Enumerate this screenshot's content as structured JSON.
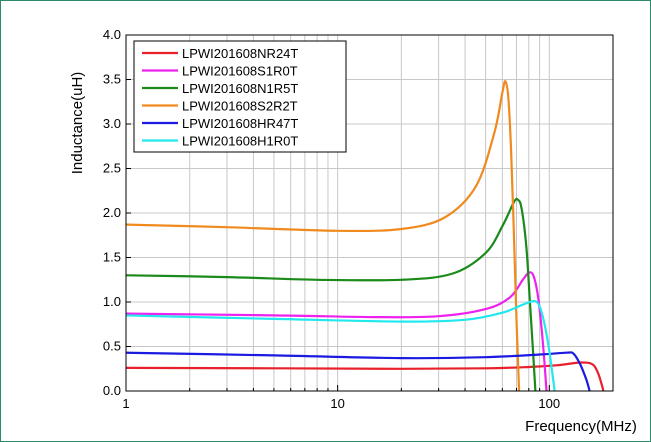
{
  "chart_data": {
    "type": "line",
    "title": "",
    "xlabel": "Frequency(MHz)",
    "ylabel": "Inductance(uH)",
    "xscale": "log",
    "xlim": [
      1,
      200
    ],
    "ylim": [
      0,
      4.0
    ],
    "xticks": [
      1,
      10,
      100
    ],
    "xtick_labels": [
      "1",
      "10",
      "100"
    ],
    "yticks": [
      0,
      0.5,
      1.0,
      1.5,
      2.0,
      2.5,
      3.0,
      3.5,
      4.0
    ],
    "ytick_labels": [
      "0.0",
      "0.5",
      "1.0",
      "1.5",
      "2.0",
      "2.5",
      "3.0",
      "3.5",
      "4.0"
    ],
    "grid": true,
    "legend_position": "top-left",
    "series": [
      {
        "name": "LPWI201608NR24T",
        "color": "#e8202a",
        "points": [
          [
            1,
            0.26
          ],
          [
            5,
            0.255
          ],
          [
            20,
            0.25
          ],
          [
            50,
            0.255
          ],
          [
            80,
            0.27
          ],
          [
            110,
            0.29
          ],
          [
            140,
            0.32
          ],
          [
            160,
            0.3
          ],
          [
            170,
            0.2
          ],
          [
            178,
            0.05
          ],
          [
            180,
            0.0
          ]
        ]
      },
      {
        "name": "LPWI201608S1R0T",
        "color": "#ee22ee",
        "points": [
          [
            1,
            0.87
          ],
          [
            5,
            0.85
          ],
          [
            15,
            0.83
          ],
          [
            30,
            0.84
          ],
          [
            50,
            0.92
          ],
          [
            65,
            1.05
          ],
          [
            75,
            1.25
          ],
          [
            80,
            1.33
          ],
          [
            84,
            1.3
          ],
          [
            88,
            1.1
          ],
          [
            92,
            0.7
          ],
          [
            95,
            0.3
          ],
          [
            97,
            0.0
          ]
        ]
      },
      {
        "name": "LPWI201608N1R5T",
        "color": "#1a8a1a",
        "points": [
          [
            1,
            1.3
          ],
          [
            3,
            1.28
          ],
          [
            8,
            1.25
          ],
          [
            20,
            1.25
          ],
          [
            35,
            1.32
          ],
          [
            50,
            1.55
          ],
          [
            60,
            1.85
          ],
          [
            68,
            2.12
          ],
          [
            71,
            2.15
          ],
          [
            74,
            2.05
          ],
          [
            78,
            1.6
          ],
          [
            81,
            1.0
          ],
          [
            84,
            0.4
          ],
          [
            86,
            0.0
          ]
        ]
      },
      {
        "name": "LPWI201608S2R2T",
        "color": "#f08a1e",
        "points": [
          [
            1,
            1.87
          ],
          [
            3,
            1.84
          ],
          [
            10,
            1.8
          ],
          [
            20,
            1.82
          ],
          [
            32,
            1.95
          ],
          [
            45,
            2.3
          ],
          [
            55,
            2.9
          ],
          [
            60,
            3.35
          ],
          [
            62,
            3.48
          ],
          [
            64,
            3.3
          ],
          [
            66,
            2.7
          ],
          [
            68,
            1.8
          ],
          [
            70,
            0.8
          ],
          [
            72,
            0.0
          ]
        ]
      },
      {
        "name": "LPWI201608HR47T",
        "color": "#1a1ae0",
        "points": [
          [
            1,
            0.43
          ],
          [
            5,
            0.4
          ],
          [
            20,
            0.37
          ],
          [
            50,
            0.38
          ],
          [
            90,
            0.41
          ],
          [
            120,
            0.43
          ],
          [
            130,
            0.42
          ],
          [
            140,
            0.3
          ],
          [
            150,
            0.12
          ],
          [
            155,
            0.0
          ]
        ]
      },
      {
        "name": "LPWI201608H1R0T",
        "color": "#22e8ee",
        "points": [
          [
            1,
            0.85
          ],
          [
            5,
            0.81
          ],
          [
            20,
            0.78
          ],
          [
            40,
            0.8
          ],
          [
            60,
            0.88
          ],
          [
            75,
            0.97
          ],
          [
            85,
            1.01
          ],
          [
            90,
            0.95
          ],
          [
            95,
            0.75
          ],
          [
            100,
            0.45
          ],
          [
            104,
            0.15
          ],
          [
            106,
            0.0
          ]
        ]
      }
    ]
  }
}
